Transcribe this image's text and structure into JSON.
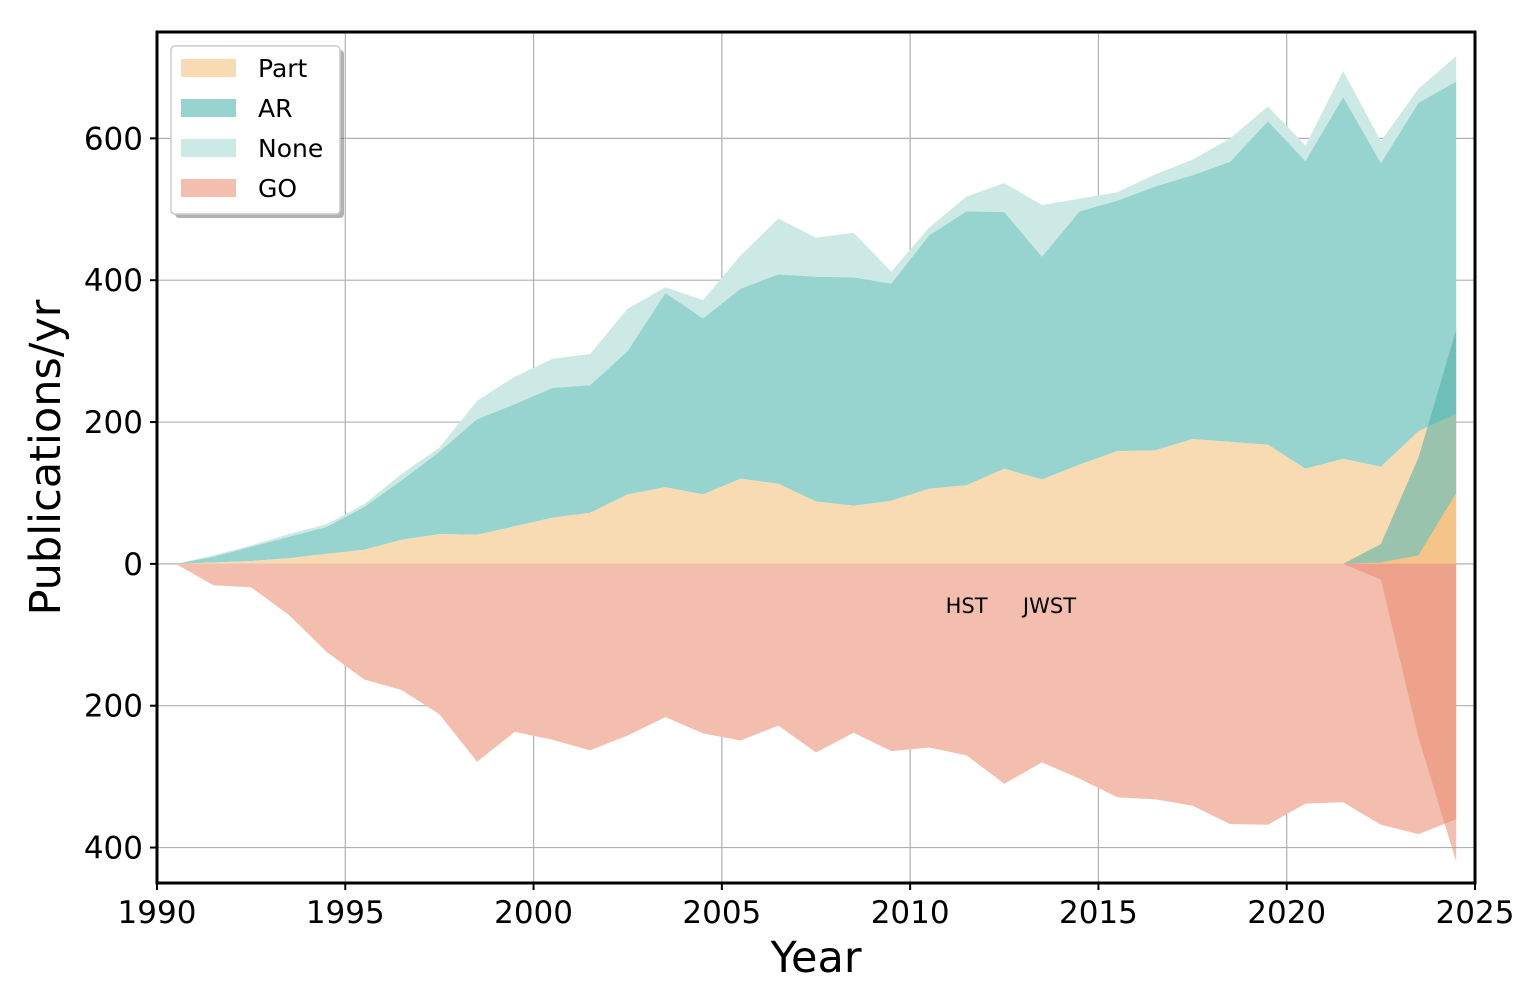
{
  "chart_data": {
    "type": "area",
    "xlabel": "Year",
    "ylabel": "Publications/yr",
    "xlim": [
      1990,
      2025
    ],
    "ylim": [
      -450,
      750
    ],
    "xticks": [
      1990,
      1995,
      2000,
      2005,
      2010,
      2015,
      2020,
      2025
    ],
    "xtick_labels": [
      "1990",
      "1995",
      "2000",
      "2005",
      "2010",
      "2015",
      "2020",
      "2025"
    ],
    "yticks": [
      600,
      400,
      200,
      0,
      -200,
      -400
    ],
    "ytick_labels": [
      "600",
      "400",
      "200",
      "0",
      "200",
      "400"
    ],
    "grid": true,
    "legend": {
      "placement": "top-left",
      "entries": [
        {
          "label": "Part",
          "color": "#f8dbb3"
        },
        {
          "label": "AR",
          "color": "#97d3cf"
        },
        {
          "label": "None",
          "color": "#cde9e5"
        },
        {
          "label": "GO",
          "color": "#f4beae"
        }
      ]
    },
    "annotations": [
      {
        "text": "HST",
        "x": 21.5,
        "y": -58
      },
      {
        "text": "JWST",
        "x": 23.7,
        "y": -58
      }
    ],
    "hst": {
      "x": [
        0.5,
        1.5,
        2.5,
        3.5,
        4.5,
        5.5,
        6.5,
        7.5,
        8.5,
        9.5,
        10.5,
        11.5,
        12.5,
        13.5,
        14.5,
        15.5,
        16.5,
        17.5,
        18.5,
        19.5,
        20.5,
        21.5,
        22.5,
        23.5,
        24.5,
        25.5,
        26.5,
        27.5,
        28.5,
        29.5,
        30.5,
        31.5,
        32.5,
        33.5,
        34.5
      ],
      "part": [
        0,
        2,
        4,
        8,
        14,
        20,
        34,
        42,
        41,
        53,
        65,
        72,
        98,
        108,
        98,
        120,
        113,
        88,
        82,
        89,
        106,
        111,
        134,
        119,
        140,
        159,
        160,
        176,
        172,
        168,
        134,
        148,
        137,
        187,
        212
      ],
      "ar_cum": [
        0,
        10,
        24,
        38,
        52,
        80,
        118,
        158,
        204,
        225,
        248,
        252,
        300,
        382,
        346,
        388,
        408,
        405,
        404,
        395,
        463,
        497,
        496,
        433,
        497,
        512,
        532,
        548,
        567,
        624,
        568,
        658,
        565,
        650,
        680
      ],
      "none_cum": [
        0,
        12,
        26,
        42,
        56,
        84,
        127,
        164,
        230,
        264,
        289,
        296,
        360,
        390,
        372,
        435,
        487,
        460,
        467,
        412,
        474,
        518,
        537,
        506,
        515,
        524,
        549,
        570,
        600,
        645,
        590,
        695,
        596,
        670,
        716
      ],
      "go": [
        0,
        -30,
        -33,
        -72,
        -124,
        -163,
        -178,
        -212,
        -279,
        -237,
        -248,
        -263,
        -242,
        -216,
        -239,
        -249,
        -228,
        -266,
        -238,
        -264,
        -259,
        -270,
        -310,
        -280,
        -303,
        -329,
        -332,
        -341,
        -367,
        -368,
        -338,
        -336,
        -368,
        -381,
        -360
      ]
    },
    "jwst": {
      "x": [
        31.5,
        32.5,
        33.5,
        34.5
      ],
      "part": [
        0,
        2,
        12,
        100
      ],
      "ar_cum": [
        0,
        28,
        150,
        330
      ],
      "go": [
        0,
        -22,
        -245,
        -420
      ]
    }
  }
}
